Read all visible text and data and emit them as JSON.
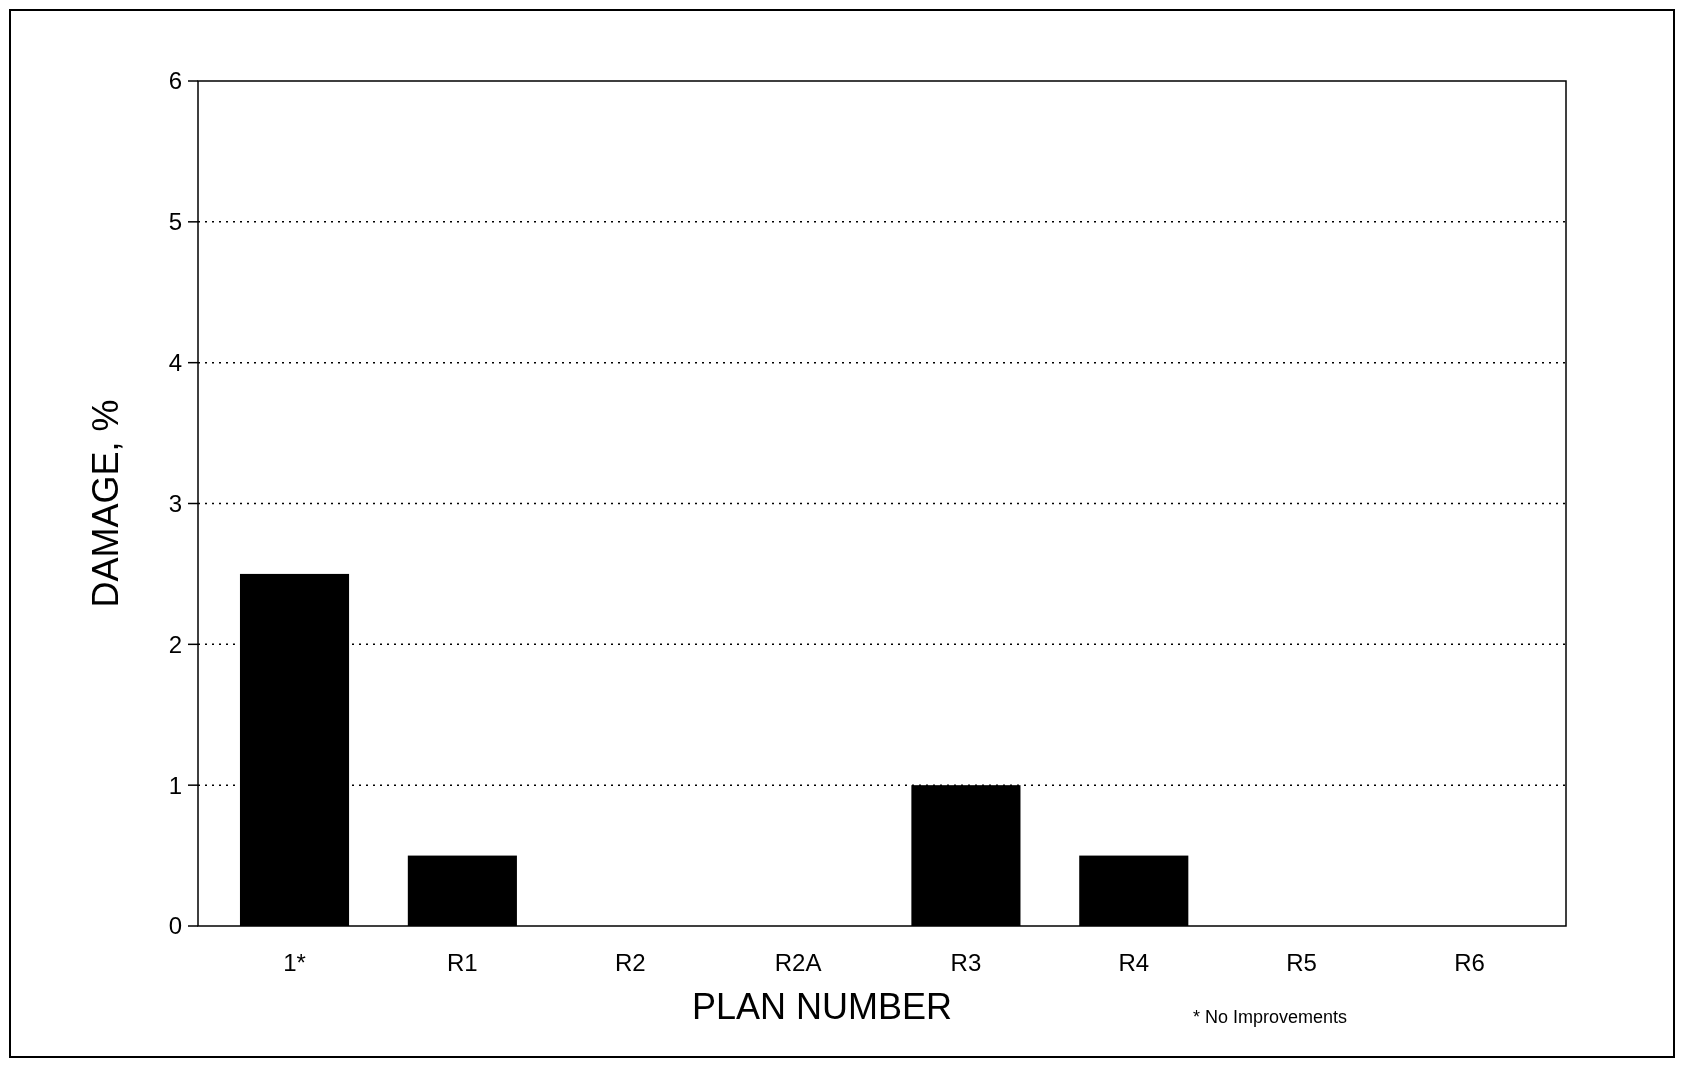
{
  "chart_data": {
    "type": "bar",
    "categories": [
      "1*",
      "R1",
      "R2",
      "R2A",
      "R3",
      "R4",
      "R5",
      "R6"
    ],
    "values": [
      2.5,
      0.5,
      0,
      0,
      1.0,
      0.5,
      0,
      0
    ],
    "color": "#000000",
    "ylim": [
      0,
      6
    ],
    "yticks": [
      0,
      1,
      2,
      3,
      4,
      5,
      6
    ],
    "grid": "y",
    "xlabel": "PLAN NUMBER",
    "ylabel": "DAMAGE, %",
    "annotations": [
      "* No Improvements"
    ]
  }
}
